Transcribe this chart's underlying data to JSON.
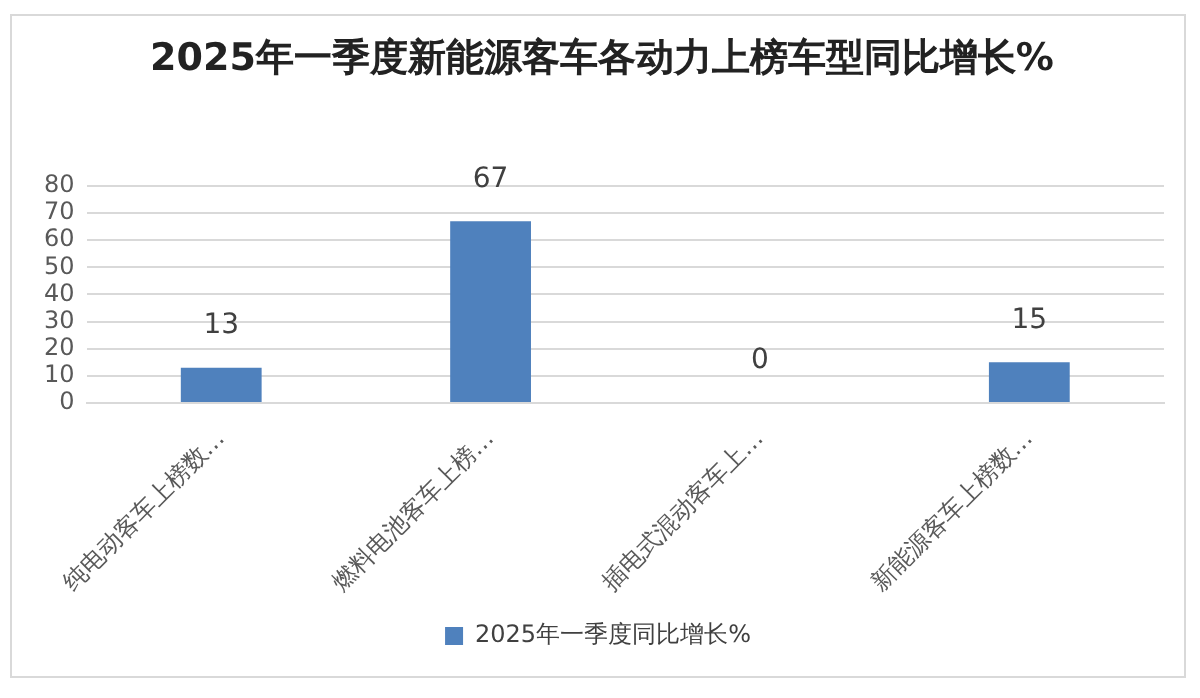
{
  "chart_data": {
    "type": "bar",
    "title": "2025年一季度新能源客车各动力上榜车型同比增长%",
    "categories": [
      "纯电动客车上榜数…",
      "燃料电池客车上榜…",
      "插电式混动客车上…",
      "新能源客车上榜数…"
    ],
    "series": [
      {
        "name": "2025年一季度同比增长%",
        "color": "#4f81bd",
        "values": [
          13,
          67,
          0,
          15
        ]
      }
    ],
    "ylim": [
      0,
      80
    ],
    "yticks": [
      0,
      10,
      20,
      30,
      40,
      50,
      60,
      70,
      80
    ],
    "grid": "y",
    "legend": "bottom",
    "data_labels": true
  }
}
